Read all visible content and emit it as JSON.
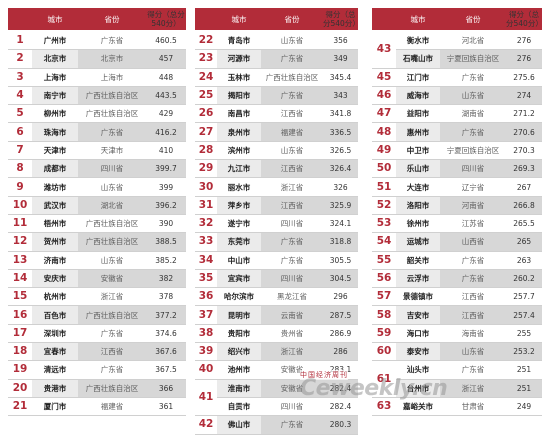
{
  "headers": {
    "rank": "",
    "city": "城市",
    "province": "省份",
    "score": "得分（总分540分）"
  },
  "colors": {
    "accent": "#b22c39"
  },
  "panel1": [
    {
      "rank": "1",
      "city": "广州市",
      "province": "广东省",
      "score": "460.5"
    },
    {
      "rank": "2",
      "city": "北京市",
      "province": "北京市",
      "score": "457"
    },
    {
      "rank": "3",
      "city": "上海市",
      "province": "上海市",
      "score": "448"
    },
    {
      "rank": "4",
      "city": "南宁市",
      "province": "广西壮族自治区",
      "score": "443.5"
    },
    {
      "rank": "5",
      "city": "柳州市",
      "province": "广西壮族自治区",
      "score": "429"
    },
    {
      "rank": "6",
      "city": "珠海市",
      "province": "广东省",
      "score": "416.2"
    },
    {
      "rank": "7",
      "city": "天津市",
      "province": "天津市",
      "score": "410"
    },
    {
      "rank": "8",
      "city": "成都市",
      "province": "四川省",
      "score": "399.7"
    },
    {
      "rank": "9",
      "city": "潍坊市",
      "province": "山东省",
      "score": "399"
    },
    {
      "rank": "10",
      "city": "武汉市",
      "province": "湖北省",
      "score": "396.2"
    },
    {
      "rank": "11",
      "city": "梧州市",
      "province": "广西壮族自治区",
      "score": "390"
    },
    {
      "rank": "12",
      "city": "贺州市",
      "province": "广西壮族自治区",
      "score": "388.5"
    },
    {
      "rank": "13",
      "city": "济南市",
      "province": "山东省",
      "score": "385.2"
    },
    {
      "rank": "14",
      "city": "安庆市",
      "province": "安徽省",
      "score": "382"
    },
    {
      "rank": "15",
      "city": "杭州市",
      "province": "浙江省",
      "score": "378"
    },
    {
      "rank": "16",
      "city": "百色市",
      "province": "广西壮族自治区",
      "score": "377.2"
    },
    {
      "rank": "17",
      "city": "深圳市",
      "province": "广东省",
      "score": "374.6"
    },
    {
      "rank": "18",
      "city": "宜春市",
      "province": "江西省",
      "score": "367.6"
    },
    {
      "rank": "19",
      "city": "清远市",
      "province": "广东省",
      "score": "367.5"
    },
    {
      "rank": "20",
      "city": "贵港市",
      "province": "广西壮族自治区",
      "score": "366"
    },
    {
      "rank": "21",
      "city": "厦门市",
      "province": "福建省",
      "score": "361"
    }
  ],
  "panel2": [
    {
      "rank": "22",
      "city": "青岛市",
      "province": "山东省",
      "score": "356"
    },
    {
      "rank": "23",
      "city": "河源市",
      "province": "广东省",
      "score": "349"
    },
    {
      "rank": "24",
      "city": "玉林市",
      "province": "广西壮族自治区",
      "score": "345.4"
    },
    {
      "rank": "25",
      "city": "揭阳市",
      "province": "广东省",
      "score": "343"
    },
    {
      "rank": "26",
      "city": "南昌市",
      "province": "江西省",
      "score": "341.8"
    },
    {
      "rank": "27",
      "city": "泉州市",
      "province": "福建省",
      "score": "336.5"
    },
    {
      "rank": "28",
      "city": "滨州市",
      "province": "山东省",
      "score": "326.5"
    },
    {
      "rank": "29",
      "city": "九江市",
      "province": "江西省",
      "score": "326.4"
    },
    {
      "rank": "30",
      "city": "丽水市",
      "province": "浙江省",
      "score": "326"
    },
    {
      "rank": "31",
      "city": "萍乡市",
      "province": "江西省",
      "score": "325.9"
    },
    {
      "rank": "32",
      "city": "遂宁市",
      "province": "四川省",
      "score": "324.1"
    },
    {
      "rank": "33",
      "city": "东莞市",
      "province": "广东省",
      "score": "318.8"
    },
    {
      "rank": "34",
      "city": "中山市",
      "province": "广东省",
      "score": "305.5"
    },
    {
      "rank": "35",
      "city": "宜宾市",
      "province": "四川省",
      "score": "304.5"
    },
    {
      "rank": "36",
      "city": "哈尔滨市",
      "province": "黑龙江省",
      "score": "296"
    },
    {
      "rank": "37",
      "city": "昆明市",
      "province": "云南省",
      "score": "287.5"
    },
    {
      "rank": "38",
      "city": "贵阳市",
      "province": "贵州省",
      "score": "286.9"
    },
    {
      "rank": "39",
      "city": "绍兴市",
      "province": "浙江省",
      "score": "286"
    },
    {
      "rank": "40",
      "city": "池州市",
      "province": "安徽省",
      "score": "283.1"
    },
    {
      "rank": "41",
      "city": "淮南市",
      "province": "安徽省",
      "score": "282.4"
    },
    {
      "rank": "",
      "city": "自贡市",
      "province": "四川省",
      "score": "282.4"
    },
    {
      "rank": "42",
      "city": "佛山市",
      "province": "广东省",
      "score": "280.3"
    }
  ],
  "panel3": [
    {
      "rank": "43",
      "city": "衡水市",
      "province": "河北省",
      "score": "276"
    },
    {
      "rank": "",
      "city": "石嘴山市",
      "province": "宁夏回族自治区",
      "score": "276"
    },
    {
      "rank": "45",
      "city": "江门市",
      "province": "广东省",
      "score": "275.6"
    },
    {
      "rank": "46",
      "city": "威海市",
      "province": "山东省",
      "score": "274"
    },
    {
      "rank": "47",
      "city": "益阳市",
      "province": "湖南省",
      "score": "271.2"
    },
    {
      "rank": "48",
      "city": "惠州市",
      "province": "广东省",
      "score": "270.6"
    },
    {
      "rank": "49",
      "city": "中卫市",
      "province": "宁夏回族自治区",
      "score": "270.3"
    },
    {
      "rank": "50",
      "city": "乐山市",
      "province": "四川省",
      "score": "269.3"
    },
    {
      "rank": "51",
      "city": "大连市",
      "province": "辽宁省",
      "score": "267"
    },
    {
      "rank": "52",
      "city": "洛阳市",
      "province": "河南省",
      "score": "266.8"
    },
    {
      "rank": "53",
      "city": "徐州市",
      "province": "江苏省",
      "score": "265.5"
    },
    {
      "rank": "54",
      "city": "运城市",
      "province": "山西省",
      "score": "265"
    },
    {
      "rank": "55",
      "city": "韶关市",
      "province": "广东省",
      "score": "263"
    },
    {
      "rank": "56",
      "city": "云浮市",
      "province": "广东省",
      "score": "260.2"
    },
    {
      "rank": "57",
      "city": "景德镇市",
      "province": "江西省",
      "score": "257.7"
    },
    {
      "rank": "58",
      "city": "吉安市",
      "province": "江西省",
      "score": "257.4"
    },
    {
      "rank": "59",
      "city": "海口市",
      "province": "海南省",
      "score": "255"
    },
    {
      "rank": "60",
      "city": "泰安市",
      "province": "山东省",
      "score": "253.2"
    },
    {
      "rank": "61",
      "city": "汕头市",
      "province": "广东省",
      "score": "251"
    },
    {
      "rank": "",
      "city": "台州市",
      "province": "浙江省",
      "score": "251"
    },
    {
      "rank": "63",
      "city": "嘉峪关市",
      "province": "甘肃省",
      "score": "249"
    }
  ],
  "watermark": {
    "text": "Ceweekly.cn",
    "cn": "中国经济周刊"
  }
}
